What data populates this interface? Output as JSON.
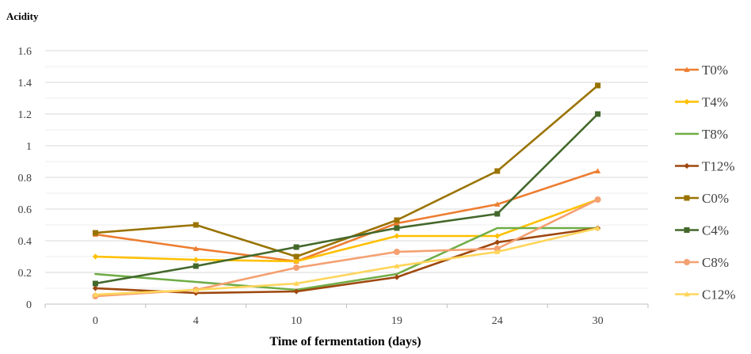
{
  "chart_data": {
    "type": "line",
    "title": "",
    "ylabel": "Acidity",
    "xlabel": "Time of fermentation (days)",
    "categories": [
      "0",
      "4",
      "10",
      "19",
      "24",
      "30"
    ],
    "ylim": [
      0,
      1.6
    ],
    "yticks": [
      "0",
      "0.2",
      "0.4",
      "0.6",
      "0.8",
      "1",
      "1.2",
      "1.4",
      "1.6"
    ],
    "grid": true,
    "legend_position": "right",
    "series": [
      {
        "name": "T0%",
        "color": "#ED7D31",
        "marker": "triangle",
        "values": [
          0.44,
          0.35,
          0.27,
          0.51,
          0.63,
          0.84
        ]
      },
      {
        "name": "T4%",
        "color": "#FFC000",
        "marker": "diamond",
        "values": [
          0.3,
          0.28,
          0.27,
          0.43,
          0.43,
          0.66
        ]
      },
      {
        "name": "T8%",
        "color": "#70AD47",
        "marker": "none",
        "values": [
          0.19,
          0.14,
          0.09,
          0.19,
          0.48,
          0.48
        ]
      },
      {
        "name": "T12%",
        "color": "#9E480E",
        "marker": "diamond",
        "values": [
          0.1,
          0.07,
          0.08,
          0.17,
          0.39,
          0.48
        ]
      },
      {
        "name": "C0%",
        "color": "#997300",
        "marker": "square",
        "values": [
          0.45,
          0.5,
          0.3,
          0.53,
          0.84,
          1.38
        ]
      },
      {
        "name": "C4%",
        "color": "#43682B",
        "marker": "square",
        "values": [
          0.13,
          0.24,
          0.36,
          0.48,
          0.57,
          1.2
        ]
      },
      {
        "name": "C8%",
        "color": "#F4A071",
        "marker": "circle",
        "values": [
          0.05,
          0.09,
          0.23,
          0.33,
          0.35,
          0.66
        ]
      },
      {
        "name": "C12%",
        "color": "#FFD55A",
        "marker": "triangle",
        "values": [
          0.06,
          0.09,
          0.13,
          0.24,
          0.33,
          0.48
        ]
      }
    ]
  }
}
